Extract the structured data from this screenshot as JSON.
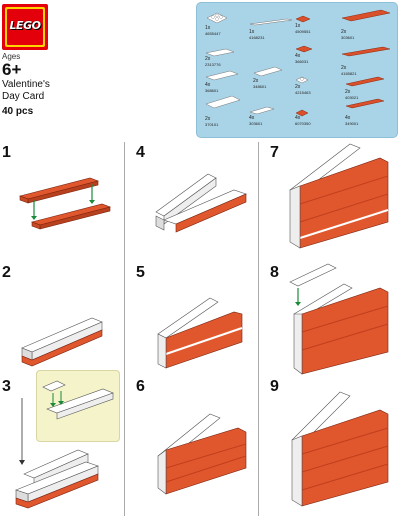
{
  "brand": {
    "logo_text": "LEGO",
    "colors": {
      "red": "#e3000b",
      "yellow": "#ffd500",
      "parts_bg": "#a9d3e6"
    }
  },
  "set": {
    "ages_label": "Ages",
    "ages_value": "6+",
    "title_line1": "Valentine's",
    "title_line2": "Day Card",
    "pieces": "40 pcs"
  },
  "parts": [
    {
      "qty": "1x",
      "code": "4655447"
    },
    {
      "qty": "1x",
      "code": "4168231"
    },
    {
      "qty": "1x",
      "code": "4509551"
    },
    {
      "qty": "2x",
      "code": "303601"
    },
    {
      "qty": "2x",
      "code": "2313776"
    },
    {
      "qty": "4x",
      "code": "366031"
    },
    {
      "qty": "2x",
      "code": "4165821"
    },
    {
      "qty": "4x",
      "code": "368601"
    },
    {
      "qty": "2x",
      "code": "348601"
    },
    {
      "qty": "2x",
      "code": "4215463"
    },
    {
      "qty": "2x",
      "code": "403021"
    },
    {
      "qty": "4x",
      "code": "303601"
    },
    {
      "qty": "2x",
      "code": "370101"
    },
    {
      "qty": "4x",
      "code": "6070350"
    },
    {
      "qty": "4x",
      "code": "349001"
    }
  ],
  "steps": [
    "1",
    "2",
    "3",
    "4",
    "5",
    "6",
    "7",
    "8",
    "9"
  ]
}
